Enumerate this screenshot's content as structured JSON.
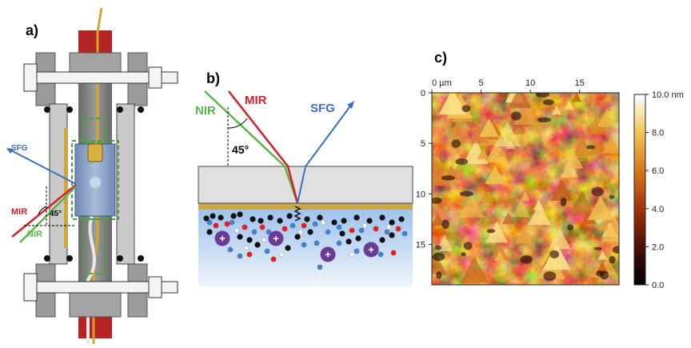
{
  "panels": {
    "a": {
      "label": "a)",
      "beams": {
        "sfg": "SFG",
        "mir": "MIR",
        "nir": "NIR"
      },
      "angle": "45°"
    },
    "b": {
      "label": "b)",
      "beams": {
        "nir": "NIR",
        "mir": "MIR",
        "sfg": "SFG"
      },
      "angle": "45°",
      "cation_symbol": "+"
    },
    "c": {
      "label": "c)",
      "x_ticks": [
        "0 µm",
        "5",
        "10",
        "15"
      ],
      "y_ticks": [
        "0",
        "5",
        "10",
        "15"
      ],
      "colorbar_ticks": [
        "10.0 nm",
        "8.0",
        "6.0",
        "4.0",
        "2.0",
        "0.0"
      ],
      "x_range_um": [
        0,
        19
      ],
      "colorbar_range_nm": [
        0,
        10
      ]
    }
  },
  "colors": {
    "sfg": "#3a6fc4",
    "mir": "#d81f26",
    "nir": "#5bb54a",
    "clamp": "#8c8c8c",
    "rod": "#b32626",
    "electrolyte": "#cfe0f5",
    "gold": "#c9a64a",
    "cation": "#6a3a96"
  }
}
